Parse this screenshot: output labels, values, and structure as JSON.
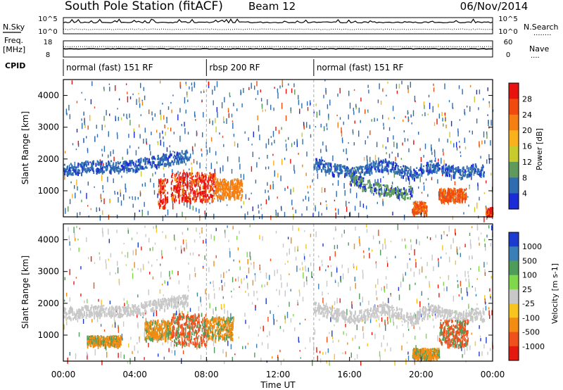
{
  "header": {
    "station": "South Pole Station (fitACF)",
    "beam": "Beam 12",
    "date": "06/Nov/2014"
  },
  "strip_labels": {
    "nsky": "N.Sky",
    "nsearch": "N.Search",
    "nsearch_dots": "........",
    "freq_line1": "Freq.",
    "freq_line2": "[MHz]",
    "nave": "Nave",
    "nave_dots": "....",
    "cpid": "CPID",
    "nsky_ticks": [
      "10^5",
      "10^0"
    ],
    "nsearch_ticks": [
      "10^5",
      "10^0"
    ],
    "freq_ticks": [
      "18",
      "8"
    ],
    "nave_ticks": [
      "60",
      "0"
    ]
  },
  "cpid_modes": [
    {
      "label": "normal (fast) 151 RF",
      "start_hour": 0,
      "end_hour": 8
    },
    {
      "label": "rbsp 200 RF",
      "start_hour": 8,
      "end_hour": 14
    },
    {
      "label": "normal (fast) 151 RF",
      "start_hour": 14,
      "end_hour": 24
    }
  ],
  "chart_data": [
    {
      "type": "heatmap",
      "name": "power",
      "ylabel": "Slant Range [km]",
      "ylim": [
        180,
        4500
      ],
      "yticks": [
        1000,
        2000,
        3000,
        4000
      ],
      "xlim": [
        0,
        24
      ],
      "colorbar_label": "Power [dB]",
      "colorbar_ticks": [
        "28",
        "24",
        "20",
        "16",
        "12",
        "8",
        "4"
      ],
      "colorbar_colors": [
        "#e8120f",
        "#f04a0e",
        "#f57f10",
        "#f9b21b",
        "#c7cb2c",
        "#5f9a5c",
        "#2f6db0",
        "#1c2bd8"
      ],
      "bands": [
        {
          "x": [
            0.0,
            0.5,
            1.0,
            1.5,
            2.0,
            2.5,
            3.0,
            3.5,
            4.0,
            4.5,
            5.0,
            5.5,
            6.0,
            6.5,
            7.0
          ],
          "y": [
            1720,
            1700,
            1760,
            1800,
            1780,
            1800,
            1760,
            1820,
            1840,
            1900,
            1950,
            2000,
            2050,
            2100,
            2150
          ],
          "color": "#2f6db0"
        },
        {
          "x": [
            14.0,
            14.5,
            15.0,
            15.5,
            16.0,
            16.5,
            17.0,
            17.5,
            18.0,
            18.5,
            19.0,
            19.5,
            20.0,
            20.5,
            21.0,
            21.5,
            22.0,
            22.5,
            23.0,
            23.5
          ],
          "y": [
            1900,
            1800,
            1700,
            1680,
            1600,
            1620,
            1700,
            1800,
            1850,
            1750,
            1650,
            1500,
            1700,
            1800,
            1780,
            1650,
            1600,
            1620,
            1700,
            1650
          ],
          "color": "#2f6db0"
        },
        {
          "x": [
            16.0,
            16.5,
            17.0,
            17.5,
            18.0,
            18.5,
            19.0,
            19.5
          ],
          "y": [
            1400,
            1300,
            1200,
            1100,
            1050,
            1000,
            950,
            1000
          ],
          "color": "#5f9a5c"
        }
      ],
      "hotspots": [
        {
          "x0": 5.3,
          "x1": 5.8,
          "y0": 500,
          "y1": 1400,
          "color": "#e8120f"
        },
        {
          "x0": 6.0,
          "x1": 8.5,
          "y0": 700,
          "y1": 1600,
          "color": "#e8120f"
        },
        {
          "x0": 8.5,
          "x1": 10.0,
          "y0": 800,
          "y1": 1400,
          "color": "#f57f10"
        },
        {
          "x0": 19.5,
          "x1": 20.3,
          "y0": 300,
          "y1": 700,
          "color": "#f04a0e"
        },
        {
          "x0": 21.0,
          "x1": 22.5,
          "y0": 700,
          "y1": 1100,
          "color": "#f04a0e"
        },
        {
          "x0": 23.6,
          "x1": 24.0,
          "y0": 250,
          "y1": 500,
          "color": "#e8120f"
        }
      ]
    },
    {
      "type": "heatmap",
      "name": "velocity",
      "ylabel": "Slant Range [km]",
      "xlabel": "Time UT",
      "ylim": [
        180,
        4500
      ],
      "yticks": [
        1000,
        2000,
        3000,
        4000
      ],
      "xlim": [
        0,
        24
      ],
      "xticks": [
        "00:00",
        "04:00",
        "08:00",
        "12:00",
        "16:00",
        "20:00",
        "00:00"
      ],
      "colorbar_label": "Velocity [m s-1]",
      "colorbar_ticks": [
        "1000",
        "500",
        "100",
        "25",
        "-25",
        "-100",
        "-500",
        "-1000"
      ],
      "colorbar_colors": [
        "#1c3bd0",
        "#3a7fb8",
        "#4f9c5a",
        "#7fd84a",
        "#c8c8c8",
        "#f7c51d",
        "#f28c12",
        "#f0501b",
        "#e41a0f"
      ],
      "bands": [
        {
          "x": [
            0.0,
            0.5,
            1.0,
            1.5,
            2.0,
            2.5,
            3.0,
            3.5,
            4.0,
            4.5,
            5.0,
            5.5,
            6.0,
            6.5,
            7.0
          ],
          "y": [
            1720,
            1700,
            1760,
            1800,
            1780,
            1800,
            1760,
            1820,
            1840,
            1900,
            1950,
            2000,
            2050,
            2100,
            2150
          ],
          "color": "#c8c8c8"
        },
        {
          "x": [
            14.0,
            14.5,
            15.0,
            15.5,
            16.0,
            16.5,
            17.0,
            17.5,
            18.0,
            18.5,
            19.0,
            19.5,
            20.0,
            20.5,
            21.0,
            21.5,
            22.0,
            22.5,
            23.0,
            23.5
          ],
          "y": [
            1900,
            1800,
            1700,
            1680,
            1600,
            1620,
            1700,
            1800,
            1850,
            1750,
            1650,
            1500,
            1700,
            1800,
            1780,
            1650,
            1600,
            1620,
            1700,
            1650
          ],
          "color": "#c8c8c8"
        }
      ],
      "hotspots": [
        {
          "x0": 4.5,
          "x1": 6.0,
          "y0": 900,
          "y1": 1500,
          "color": "#f28c12"
        },
        {
          "x0": 6.0,
          "x1": 8.0,
          "y0": 700,
          "y1": 1700,
          "color": "#f0501b"
        },
        {
          "x0": 8.0,
          "x1": 9.5,
          "y0": 900,
          "y1": 1600,
          "color": "#f28c12"
        },
        {
          "x0": 1.3,
          "x1": 3.2,
          "y0": 700,
          "y1": 1000,
          "color": "#f28c12"
        },
        {
          "x0": 19.5,
          "x1": 21.0,
          "y0": 300,
          "y1": 600,
          "color": "#f28c12"
        },
        {
          "x0": 21.0,
          "x1": 22.6,
          "y0": 700,
          "y1": 1500,
          "color": "#f0501b"
        }
      ]
    }
  ]
}
